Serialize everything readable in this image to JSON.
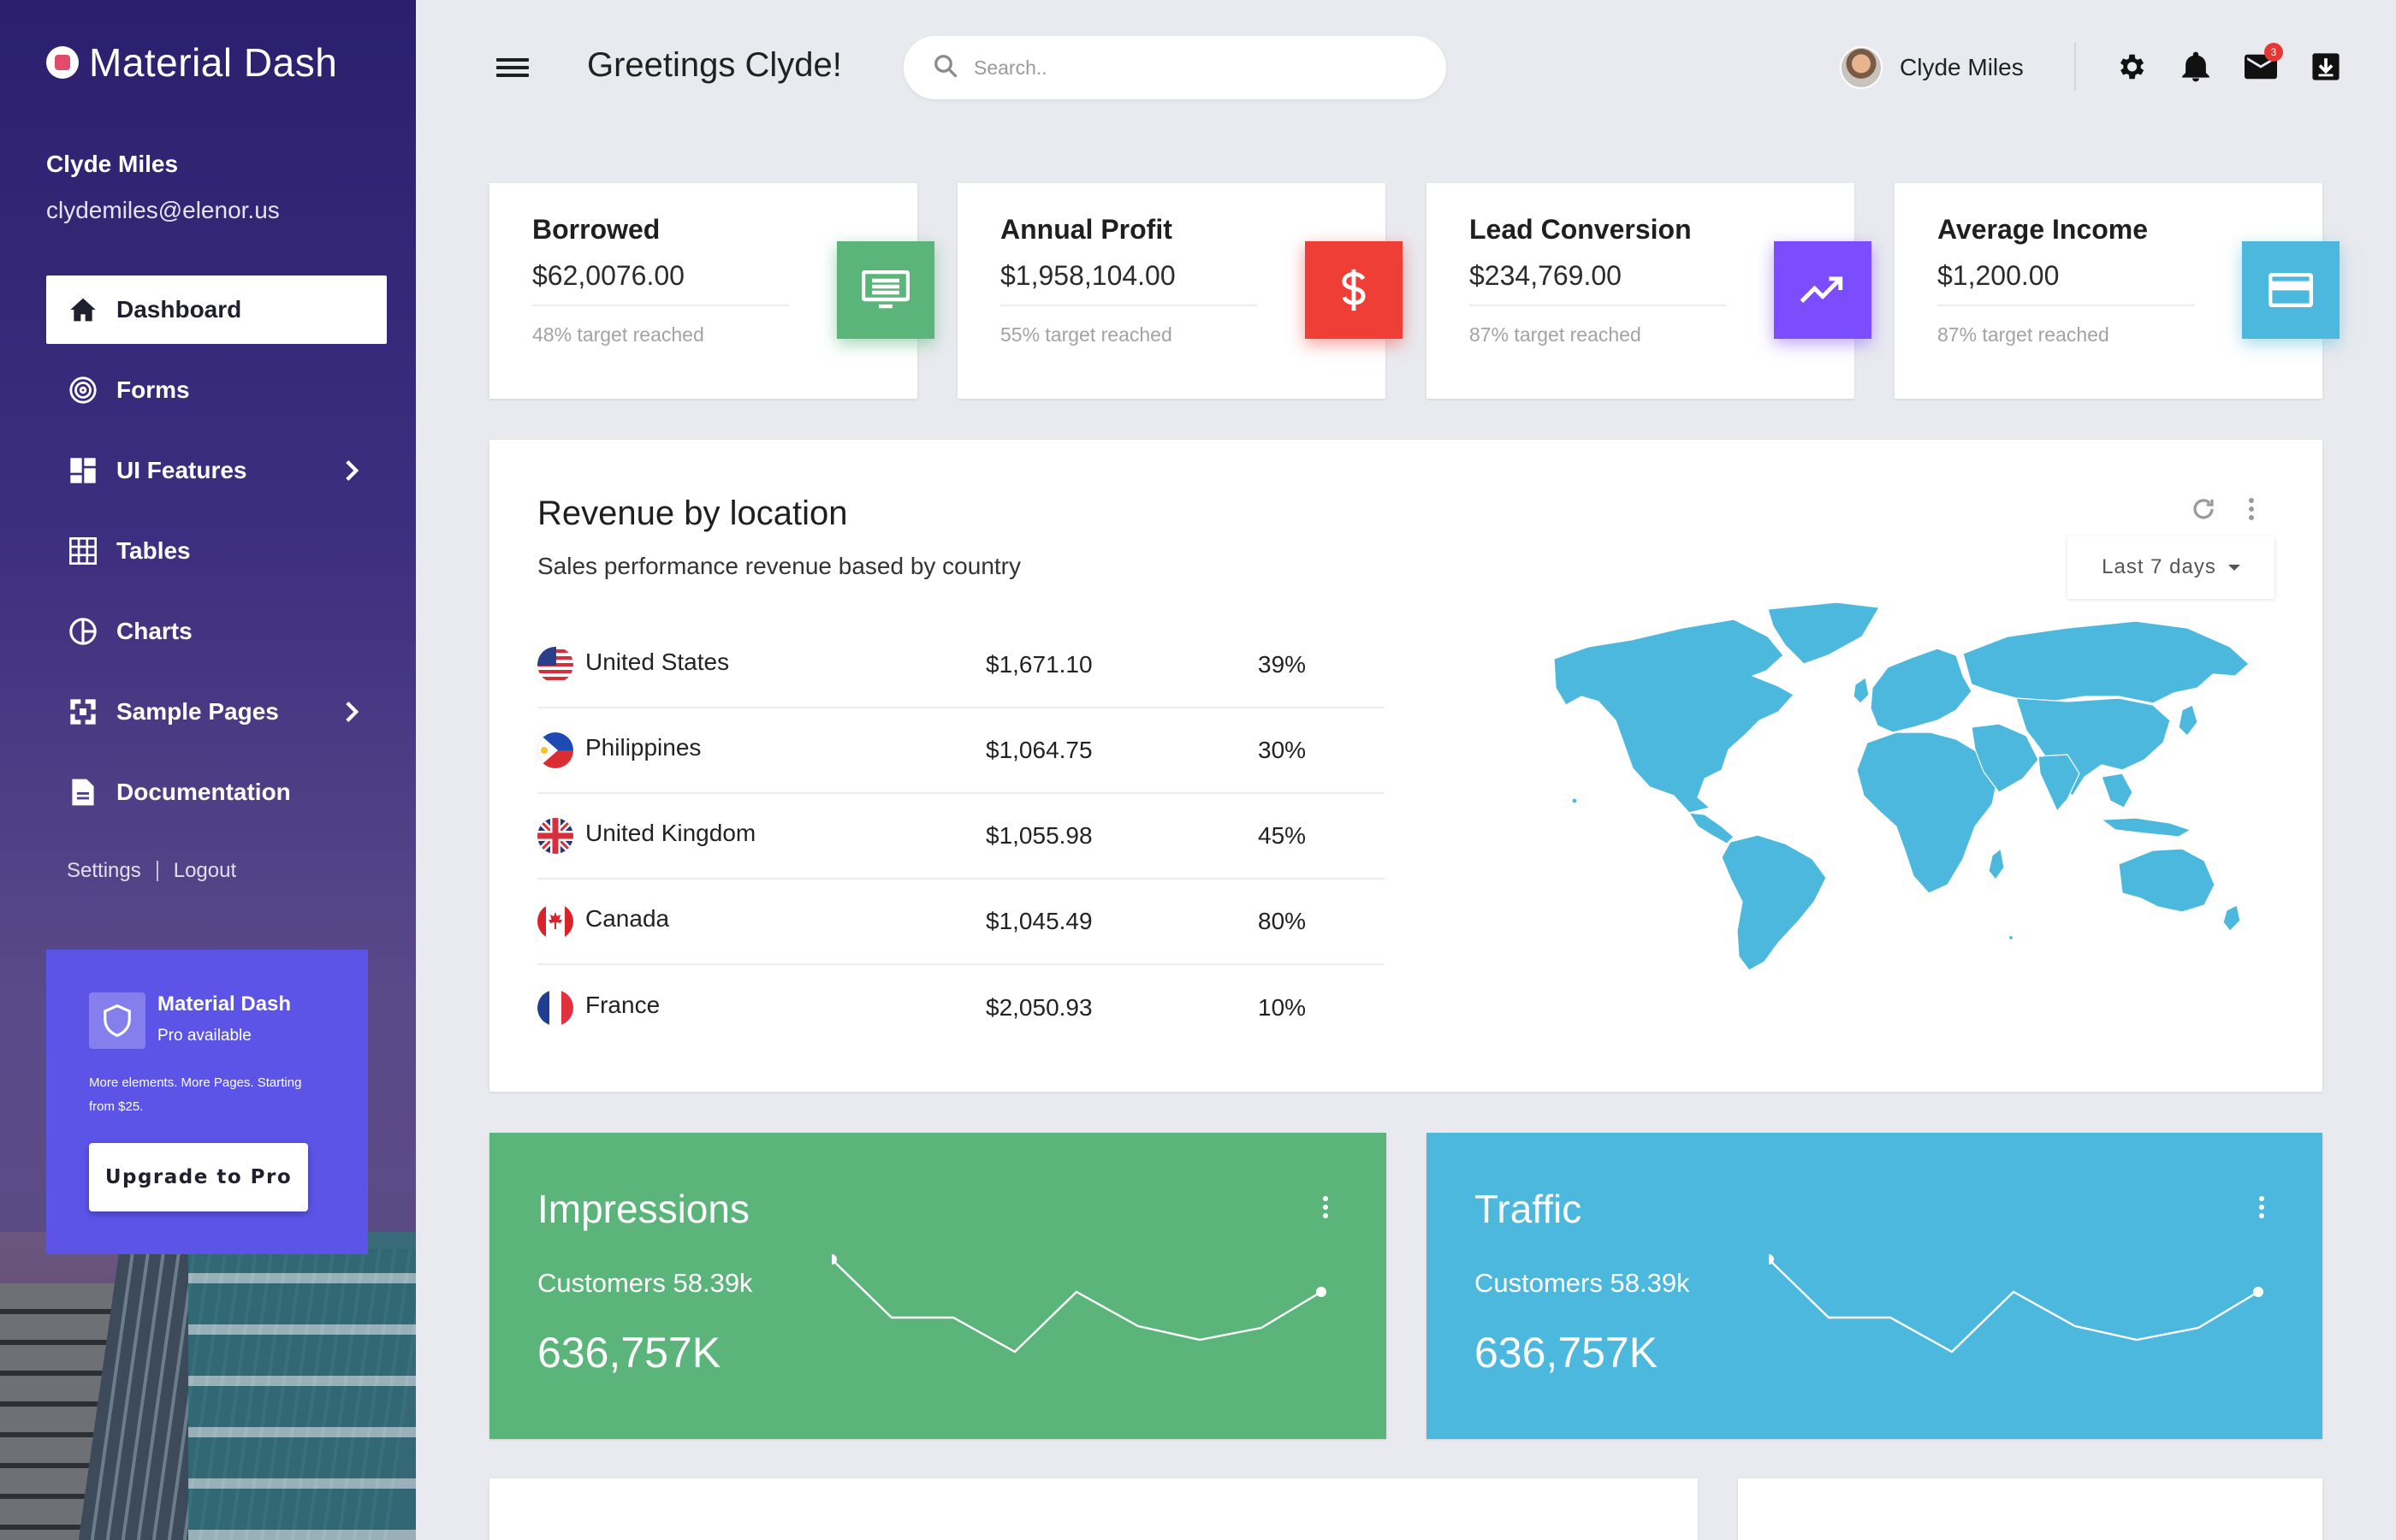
{
  "brand": {
    "name": "Material Dash"
  },
  "sidebar": {
    "user_name": "Clyde Miles",
    "user_email": "clydemiles@elenor.us",
    "items": [
      {
        "label": "Dashboard"
      },
      {
        "label": "Forms"
      },
      {
        "label": "UI Features"
      },
      {
        "label": "Tables"
      },
      {
        "label": "Charts"
      },
      {
        "label": "Sample Pages"
      },
      {
        "label": "Documentation"
      }
    ],
    "settings_label": "Settings",
    "logout_label": "Logout",
    "promo": {
      "title": "Material Dash",
      "subtitle": "Pro available",
      "description": "More elements. More Pages. Starting from $25.",
      "button": "Upgrade to Pro"
    }
  },
  "header": {
    "greeting": "Greetings Clyde!",
    "search_placeholder": "Search..",
    "user_name": "Clyde Miles",
    "mail_badge": "3"
  },
  "stats": [
    {
      "title": "Borrowed",
      "value": "$62,0076.00",
      "note": "48% target reached",
      "color": "#5bb57a",
      "icon": "monitor-icon"
    },
    {
      "title": "Annual Profit",
      "value": "$1,958,104.00",
      "note": "55% target reached",
      "color": "#ef3e36",
      "icon": "dollar-icon"
    },
    {
      "title": "Lead Conversion",
      "value": "$234,769.00",
      "note": "87% target reached",
      "color": "#7c4dff",
      "icon": "trending-up-icon"
    },
    {
      "title": "Average Income",
      "value": "$1,200.00",
      "note": "87% target reached",
      "color": "#4db8dd",
      "icon": "credit-card-icon"
    }
  ],
  "revenue": {
    "title": "Revenue by location",
    "subtitle": "Sales performance revenue based by country",
    "range_label": "Last 7 days",
    "rows": [
      {
        "country": "United States",
        "amount": "$1,671.10",
        "percent": "39%"
      },
      {
        "country": "Philippines",
        "amount": "$1,064.75",
        "percent": "30%"
      },
      {
        "country": "United Kingdom",
        "amount": "$1,055.98",
        "percent": "45%"
      },
      {
        "country": "Canada",
        "amount": "$1,045.49",
        "percent": "80%"
      },
      {
        "country": "France",
        "amount": "$2,050.93",
        "percent": "10%"
      }
    ]
  },
  "metrics": [
    {
      "title": "Impressions",
      "subtitle": "Customers 58.39k",
      "value": "636,757K",
      "color": "#5bb57a"
    },
    {
      "title": "Traffic",
      "subtitle": "Customers 58.39k",
      "value": "636,757K",
      "color": "#4db8dd"
    }
  ]
}
